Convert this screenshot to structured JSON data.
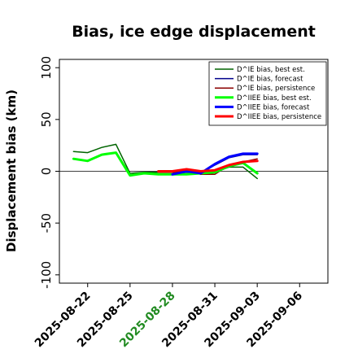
{
  "chart_data": {
    "type": "line",
    "title": "Bias, ice edge displacement",
    "xlabel": "",
    "ylabel": "Displacement bias (km)",
    "x_tick_labels": [
      "2025-08-22",
      "2025-08-25",
      "2025-08-28",
      "2025-08-31",
      "2025-09-03",
      "2025-09-06"
    ],
    "x_tick_colors": [
      "#000000",
      "#000000",
      "#228b22",
      "#000000",
      "#000000",
      "#000000"
    ],
    "xlim": [
      "2025-08-20",
      "2025-09-08"
    ],
    "y_ticks": [
      -100,
      -50,
      0,
      50,
      100
    ],
    "ylim": [
      -108,
      108
    ],
    "zero_line": true,
    "legend_position": "top-right",
    "series": [
      {
        "name": "D^IE bias, best est.",
        "color": "#006400",
        "width": 1.5,
        "x": [
          "2025-08-21",
          "2025-08-22",
          "2025-08-23",
          "2025-08-24",
          "2025-08-25",
          "2025-08-26",
          "2025-08-27",
          "2025-08-28",
          "2025-08-29",
          "2025-08-30",
          "2025-08-31",
          "2025-09-01",
          "2025-09-02",
          "2025-09-03"
        ],
        "values": [
          19,
          18,
          23,
          26,
          -2,
          -1,
          -1,
          -1,
          -1,
          -1,
          -1,
          4,
          4,
          -7
        ]
      },
      {
        "name": "D^IE bias, forecast",
        "color": "#00008b",
        "width": 1.5,
        "x": [
          "2025-08-28",
          "2025-08-29",
          "2025-08-30",
          "2025-08-31",
          "2025-09-01",
          "2025-09-02",
          "2025-09-03"
        ],
        "values": [
          -3,
          -1,
          -2,
          6,
          13,
          16,
          16
        ]
      },
      {
        "name": "D^IE bias, persistence",
        "color": "#8b0000",
        "width": 1.5,
        "x": [
          "2025-08-27",
          "2025-08-28",
          "2025-08-29",
          "2025-08-30",
          "2025-08-31",
          "2025-09-01",
          "2025-09-02",
          "2025-09-03"
        ],
        "values": [
          -1,
          -1,
          1,
          -3,
          -3,
          6,
          9,
          12
        ]
      },
      {
        "name": "D^IIEE bias, best est.",
        "color": "#00ff00",
        "width": 3,
        "x": [
          "2025-08-21",
          "2025-08-22",
          "2025-08-23",
          "2025-08-24",
          "2025-08-25",
          "2025-08-26",
          "2025-08-27",
          "2025-08-28",
          "2025-08-29",
          "2025-08-30",
          "2025-08-31",
          "2025-09-01",
          "2025-09-02",
          "2025-09-03"
        ],
        "values": [
          12,
          10,
          16,
          18,
          -4,
          -2,
          -3,
          -3,
          -3,
          -2,
          -1,
          5,
          8,
          -2
        ]
      },
      {
        "name": "D^IIEE bias, forecast",
        "color": "#0000ff",
        "width": 3,
        "x": [
          "2025-08-28",
          "2025-08-29",
          "2025-08-30",
          "2025-08-31",
          "2025-09-01",
          "2025-09-02",
          "2025-09-03"
        ],
        "values": [
          -3,
          0,
          -2,
          7,
          14,
          17,
          17
        ]
      },
      {
        "name": "D^IIEE bias, persistence",
        "color": "#ff0000",
        "width": 3,
        "x": [
          "2025-08-27",
          "2025-08-28",
          "2025-08-29",
          "2025-08-30",
          "2025-08-31",
          "2025-09-01",
          "2025-09-02",
          "2025-09-03"
        ],
        "values": [
          0,
          0,
          2,
          0,
          1,
          6,
          9,
          10
        ]
      }
    ]
  }
}
